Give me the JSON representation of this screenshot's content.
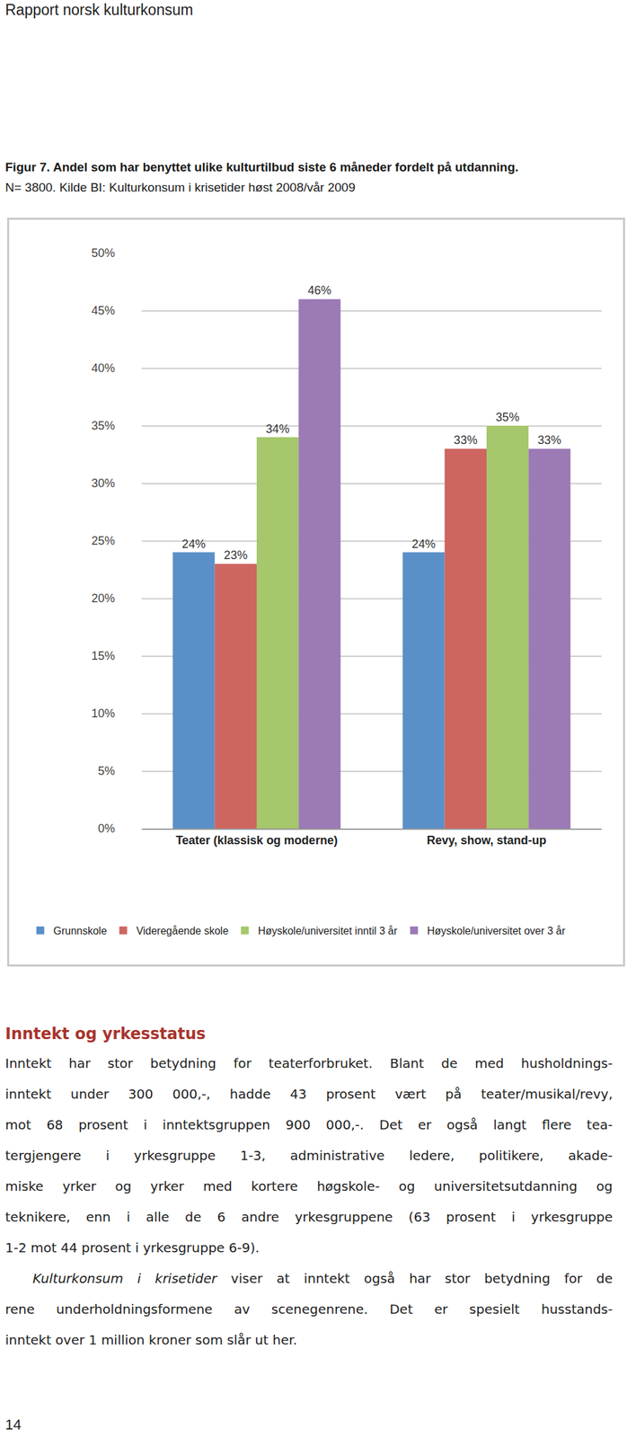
{
  "header": "Rapport norsk kulturkonsum",
  "caption": {
    "title": "Figur 7. Andel som har benyttet ulike kulturtilbud siste 6 måneder fordelt på utdanning.",
    "note": "N= 3800. Kilde BI: Kulturkonsum i krisetider høst 2008/vår 2009"
  },
  "chart_data": {
    "type": "bar",
    "categories": [
      "Teater (klassisk og moderne)",
      "Revy, show, stand-up"
    ],
    "series": [
      {
        "name": "Grunnskole",
        "color": "#5b8fc7",
        "values": [
          24,
          24
        ],
        "value_labels": [
          "24%",
          "24%"
        ]
      },
      {
        "name": "Videregående skole",
        "color": "#cd6660",
        "values": [
          23,
          33
        ],
        "value_labels": [
          "23%",
          "33%"
        ]
      },
      {
        "name": "Høyskole/universitet inntil 3 år",
        "color": "#a6c76b",
        "values": [
          34,
          35
        ],
        "value_labels": [
          "34%",
          "35%"
        ]
      },
      {
        "name": "Høyskole/universitet over 3 år",
        "color": "#9b7ab5",
        "values": [
          46,
          33
        ],
        "value_labels": [
          "46%",
          "33%"
        ]
      }
    ],
    "ylim": [
      0,
      50
    ],
    "yticks": [
      {
        "value": 0,
        "label": "0%"
      },
      {
        "value": 5,
        "label": "5%"
      },
      {
        "value": 10,
        "label": "10%"
      },
      {
        "value": 15,
        "label": "15%"
      },
      {
        "value": 20,
        "label": "20%"
      },
      {
        "value": 25,
        "label": "25%"
      },
      {
        "value": 30,
        "label": "30%"
      },
      {
        "value": 35,
        "label": "35%"
      },
      {
        "value": 40,
        "label": "40%"
      },
      {
        "value": 45,
        "label": "45%"
      },
      {
        "value": 50,
        "label": "50%"
      }
    ],
    "grid": true,
    "legend": "bottom",
    "data_labels": true
  },
  "section": {
    "heading": "Inntekt og yrkesstatus",
    "paragraphs": [
      {
        "lines": [
          "Inntekt har stor betydning for teaterforbruket. Blant de med husholdnings-",
          "inntekt under 300 000,-, hadde 43 prosent vært på teater/musikal/revy,",
          "mot 68 prosent i inntektsgruppen 900 000,-. Det er også langt flere tea-",
          "tergjengere i yrkesgruppe 1-3, administrative ledere, politikere, akade-",
          "miske yrker og yrker med kortere høgskole- og universitetsutdanning og",
          "teknikere, enn i alle de 6 andre yrkesgruppene (63 prosent i yrkesgruppe",
          "1-2 mot 44 prosent i yrkesgruppe 6-9)."
        ]
      },
      {
        "emphasis": "Kulturkonsum i krisetider",
        "lines": [
          "Kulturkonsum i krisetider viser at inntekt også har stor betydning for de",
          "rene underholdningsformene av scenegenrene. Det er spesielt husstands-",
          "inntekt over 1 million kroner som slår ut her."
        ]
      }
    ]
  },
  "page_number": "14"
}
